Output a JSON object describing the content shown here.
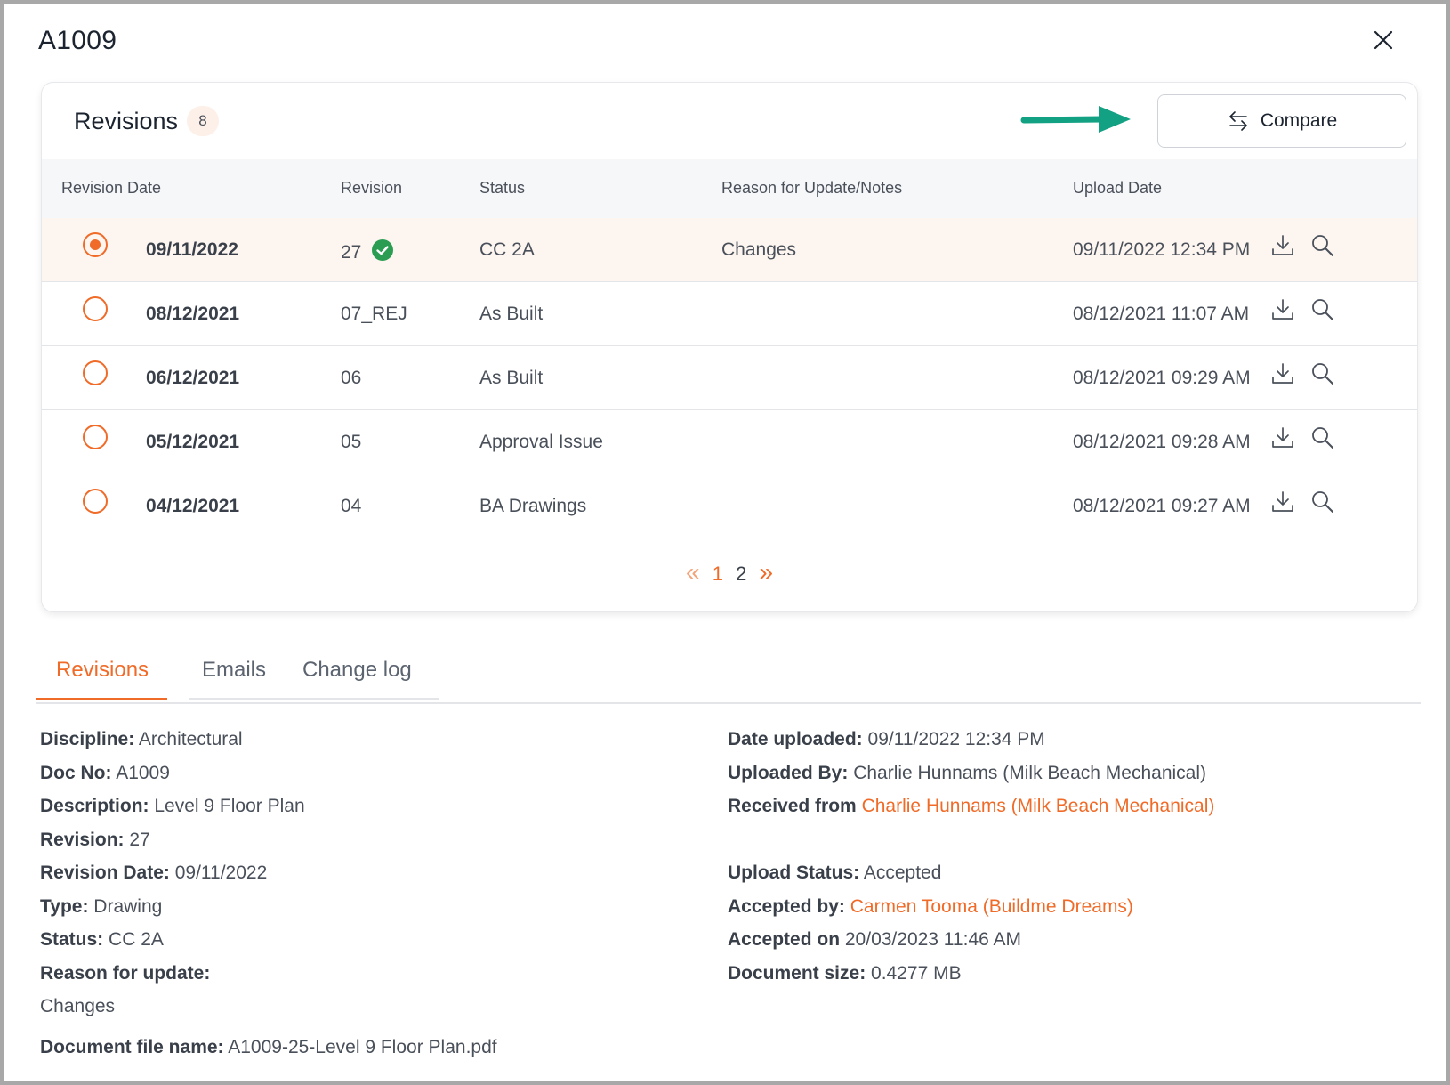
{
  "modal": {
    "title": "A1009"
  },
  "revisions": {
    "title": "Revisions",
    "count": "8",
    "compare_label": "Compare",
    "columns": {
      "revision_date": "Revision Date",
      "revision": "Revision",
      "status": "Status",
      "reason": "Reason for Update/Notes",
      "upload_date": "Upload Date"
    },
    "rows": [
      {
        "date": "09/11/2022",
        "revision": "27",
        "status": "CC 2A",
        "reason": "Changes",
        "upload": "09/11/2022 12:34 PM",
        "selected": true,
        "approved": true
      },
      {
        "date": "08/12/2021",
        "revision": "07_REJ",
        "status": "As Built",
        "reason": "",
        "upload": "08/12/2021 11:07 AM",
        "selected": false
      },
      {
        "date": "06/12/2021",
        "revision": "06",
        "status": "As Built",
        "reason": "",
        "upload": "08/12/2021 09:29 AM",
        "selected": false
      },
      {
        "date": "05/12/2021",
        "revision": "05",
        "status": "Approval Issue",
        "reason": "",
        "upload": "08/12/2021 09:28 AM",
        "selected": false
      },
      {
        "date": "04/12/2021",
        "revision": "04",
        "status": "BA Drawings",
        "reason": "",
        "upload": "08/12/2021 09:27 AM",
        "selected": false
      }
    ],
    "pagination": {
      "prev": "«",
      "pages": [
        "1",
        "2"
      ],
      "next": "»",
      "current": "1"
    }
  },
  "tabs": [
    "Revisions",
    "Emails",
    "Change log"
  ],
  "details": {
    "left": [
      {
        "label": "Discipline:",
        "value": "Architectural"
      },
      {
        "label": "Doc No:",
        "value": "A1009"
      },
      {
        "label": "Description:",
        "value": "Level 9 Floor Plan"
      },
      {
        "label": "Revision:",
        "value": "27"
      },
      {
        "label": "Revision Date:",
        "value": "09/11/2022"
      },
      {
        "label": "Type:",
        "value": "Drawing"
      },
      {
        "label": "Status:",
        "value": "CC 2A"
      },
      {
        "label": "Reason for update:",
        "value": ""
      },
      {
        "label": "",
        "value": "Changes"
      }
    ],
    "right": [
      {
        "label": "Date uploaded:",
        "value": "09/11/2022 12:34 PM"
      },
      {
        "label": "Uploaded By:",
        "value": "Charlie Hunnams (Milk Beach Mechanical)"
      },
      {
        "label": "Received from",
        "value": "Charlie Hunnams (Milk Beach Mechanical)",
        "link": true
      },
      {
        "label": "",
        "value": ""
      },
      {
        "label": "Upload Status:",
        "value": "Accepted"
      },
      {
        "label": "Accepted by:",
        "value": "Carmen Tooma (Buildme Dreams)",
        "link": true
      },
      {
        "label": "Accepted on",
        "value": "20/03/2023 11:46 AM"
      },
      {
        "label": "Document size:",
        "value": "0.4277 MB"
      }
    ],
    "file_name_label": "Document file name:",
    "file_name": "A1009-25-Level 9 Floor Plan.pdf"
  },
  "colors": {
    "accent": "#f06b28",
    "success": "#2a9d52",
    "annotation_arrow": "#13a183"
  },
  "icons": [
    "close-icon",
    "compare-arrows-icon",
    "check-circle-icon",
    "download-icon",
    "search-icon"
  ]
}
